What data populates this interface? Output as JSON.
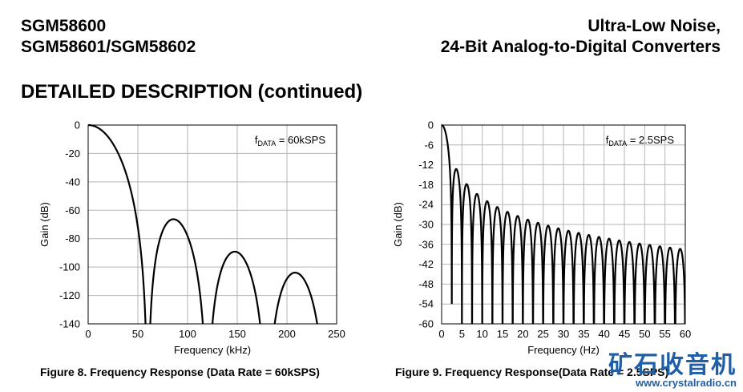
{
  "header": {
    "left_line1": "SGM58600",
    "left_line2": "SGM58601/SGM58602",
    "right_line1": "Ultra-Low Noise,",
    "right_line2": "24-Bit Analog-to-Digital Converters"
  },
  "section_title": "DETAILED DESCRIPTION (continued)",
  "chart_data": [
    {
      "type": "line",
      "title": "",
      "annotation_prefix": "f",
      "annotation_sub": "DATA",
      "annotation_suffix": " = 60kSPS",
      "xlabel": "Frequency (kHz)",
      "ylabel": "Gain (dB)",
      "xlim": [
        0,
        250
      ],
      "ylim": [
        -140,
        0
      ],
      "xticks": [
        0,
        50,
        100,
        150,
        200,
        250
      ],
      "yticks": [
        0,
        -20,
        -40,
        -60,
        -80,
        -100,
        -120,
        -140
      ],
      "grid": true,
      "response": "sinc5",
      "f_notch": 60,
      "x_end": 231,
      "sidelobe_peaks": [
        [
          86,
          -66
        ],
        [
          148,
          -88
        ],
        [
          209,
          -103
        ]
      ],
      "caption": "Figure 8. Frequency Response (Data Rate = 60kSPS)"
    },
    {
      "type": "line",
      "title": "",
      "annotation_prefix": "f",
      "annotation_sub": "DATA",
      "annotation_suffix": " = 2.5SPS",
      "xlabel": "Frequency (Hz)",
      "ylabel": "Gain (dB)",
      "xlim": [
        0,
        60
      ],
      "ylim": [
        -60,
        0
      ],
      "xticks": [
        0,
        5,
        10,
        15,
        20,
        25,
        30,
        35,
        40,
        45,
        50,
        55,
        60
      ],
      "yticks": [
        0,
        -6,
        -12,
        -18,
        -24,
        -30,
        -36,
        -42,
        -48,
        -54,
        -60
      ],
      "grid": true,
      "response": "sinc1",
      "f_notch": 2.5,
      "x_end": 60,
      "sidelobe_peaks": [
        [
          3.6,
          -13
        ],
        [
          6.2,
          -18
        ],
        [
          8.8,
          -21
        ],
        [
          36.2,
          -33
        ],
        [
          58.8,
          -37
        ]
      ],
      "caption": "Figure 9. Frequency Response(Data Rate = 2.5SPS)"
    }
  ],
  "watermark": {
    "text": "矿石收音机",
    "url": "www.crystalradio.cn"
  }
}
